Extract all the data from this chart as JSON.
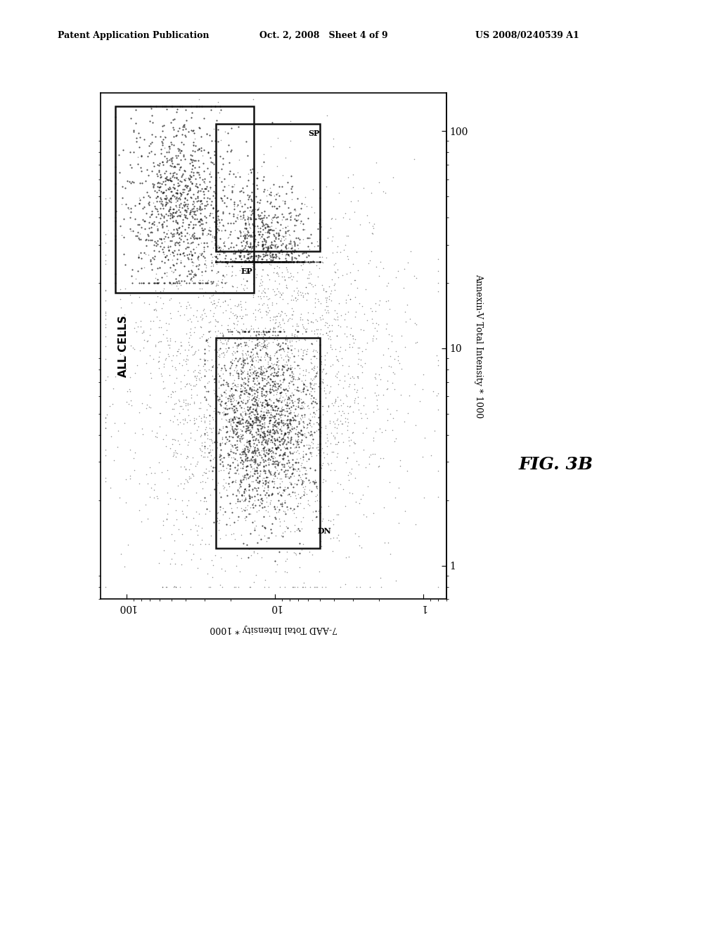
{
  "title_left": "Patent Application Publication",
  "title_center": "Oct. 2, 2008   Sheet 4 of 9",
  "title_right": "US 2008/0240539 A1",
  "fig_label": "FIG. 3B",
  "xlabel_bottom": "7-AAD Total Intensity * 1000",
  "ylabel_right": "Annexin-V Total Intensity * 1000",
  "plot_label": "ALL CELLS",
  "background_color": "#ffffff",
  "scatter_color": "#111111",
  "box_color": "#111111",
  "seed": 42,
  "n_background": 3000,
  "n_ep": 900,
  "n_sp": 1000,
  "n_dn": 1200
}
